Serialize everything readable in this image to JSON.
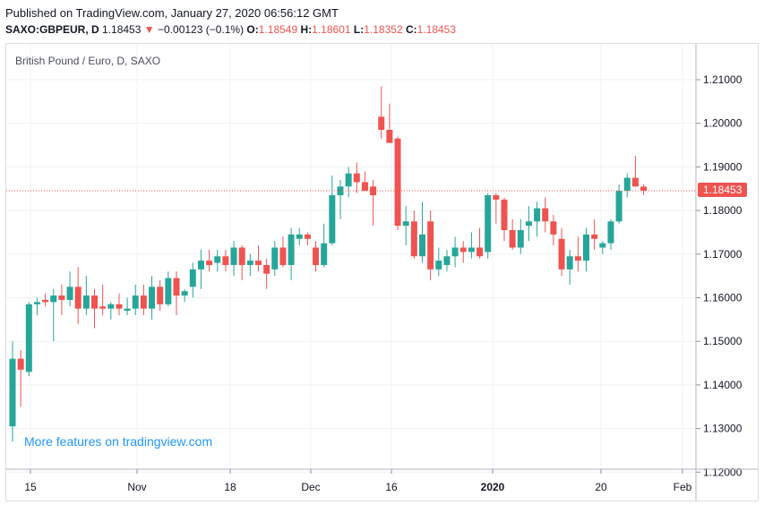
{
  "header": {
    "published": "Published on TradingView.com, January 27, 2020 06:56:12 GMT",
    "symbol": "SAXO:GBPEUR, D",
    "last": "1.18453",
    "change_arrow": "▼",
    "change": "−0.00123 (−0.1%)",
    "o_label": "O:",
    "o_value": "1.18549",
    "h_label": "H:",
    "h_value": "1.18601",
    "l_label": "L:",
    "l_value": "1.18352",
    "c_label": "C:",
    "c_value": "1.18453"
  },
  "legend": "British Pound / Euro, D, SAXO",
  "watermark": "More features on tradingview.com",
  "colors": {
    "up": "#26a69a",
    "down": "#ef5350",
    "grid": "#eef0f3",
    "axis_text": "#131722"
  },
  "chart_data": {
    "type": "candlestick",
    "title": "British Pound / Euro, D, SAXO",
    "ylim": [
      1.12,
      1.21
    ],
    "y_ticks": [
      "1.21000",
      "1.20000",
      "1.19000",
      "1.18000",
      "1.17000",
      "1.16000",
      "1.15000",
      "1.14000",
      "1.13000",
      "1.12000"
    ],
    "x_ticks": [
      "15",
      "Nov",
      "18",
      "Dec",
      "16",
      "2020",
      "20",
      "Feb"
    ],
    "last_price": "1.18453",
    "candles": [
      {
        "o": 1.1305,
        "h": 1.15,
        "l": 1.127,
        "c": 1.146
      },
      {
        "o": 1.146,
        "h": 1.148,
        "l": 1.135,
        "c": 1.1435
      },
      {
        "o": 1.143,
        "h": 1.159,
        "l": 1.142,
        "c": 1.1585
      },
      {
        "o": 1.1585,
        "h": 1.16,
        "l": 1.156,
        "c": 1.159
      },
      {
        "o": 1.1595,
        "h": 1.161,
        "l": 1.158,
        "c": 1.159
      },
      {
        "o": 1.159,
        "h": 1.162,
        "l": 1.15,
        "c": 1.1605
      },
      {
        "o": 1.1605,
        "h": 1.163,
        "l": 1.156,
        "c": 1.1595
      },
      {
        "o": 1.1595,
        "h": 1.166,
        "l": 1.158,
        "c": 1.1625
      },
      {
        "o": 1.1625,
        "h": 1.167,
        "l": 1.154,
        "c": 1.1575
      },
      {
        "o": 1.1575,
        "h": 1.165,
        "l": 1.156,
        "c": 1.1605
      },
      {
        "o": 1.1605,
        "h": 1.162,
        "l": 1.153,
        "c": 1.1575
      },
      {
        "o": 1.158,
        "h": 1.163,
        "l": 1.156,
        "c": 1.1575
      },
      {
        "o": 1.1575,
        "h": 1.159,
        "l": 1.155,
        "c": 1.1585
      },
      {
        "o": 1.1585,
        "h": 1.161,
        "l": 1.156,
        "c": 1.1575
      },
      {
        "o": 1.157,
        "h": 1.16,
        "l": 1.156,
        "c": 1.1575
      },
      {
        "o": 1.1575,
        "h": 1.163,
        "l": 1.156,
        "c": 1.1605
      },
      {
        "o": 1.1605,
        "h": 1.163,
        "l": 1.156,
        "c": 1.1575
      },
      {
        "o": 1.1575,
        "h": 1.165,
        "l": 1.155,
        "c": 1.1625
      },
      {
        "o": 1.1625,
        "h": 1.164,
        "l": 1.157,
        "c": 1.1585
      },
      {
        "o": 1.1585,
        "h": 1.166,
        "l": 1.158,
        "c": 1.1645
      },
      {
        "o": 1.1645,
        "h": 1.166,
        "l": 1.156,
        "c": 1.1605
      },
      {
        "o": 1.1605,
        "h": 1.162,
        "l": 1.159,
        "c": 1.1615
      },
      {
        "o": 1.1625,
        "h": 1.168,
        "l": 1.16,
        "c": 1.1665
      },
      {
        "o": 1.1665,
        "h": 1.171,
        "l": 1.162,
        "c": 1.1685
      },
      {
        "o": 1.1685,
        "h": 1.171,
        "l": 1.166,
        "c": 1.1675
      },
      {
        "o": 1.168,
        "h": 1.171,
        "l": 1.166,
        "c": 1.1695
      },
      {
        "o": 1.1695,
        "h": 1.171,
        "l": 1.166,
        "c": 1.1675
      },
      {
        "o": 1.1675,
        "h": 1.173,
        "l": 1.165,
        "c": 1.1715
      },
      {
        "o": 1.1715,
        "h": 1.172,
        "l": 1.164,
        "c": 1.1675
      },
      {
        "o": 1.1675,
        "h": 1.17,
        "l": 1.165,
        "c": 1.1685
      },
      {
        "o": 1.1685,
        "h": 1.172,
        "l": 1.166,
        "c": 1.1675
      },
      {
        "o": 1.1675,
        "h": 1.169,
        "l": 1.162,
        "c": 1.1655
      },
      {
        "o": 1.1665,
        "h": 1.173,
        "l": 1.165,
        "c": 1.1715
      },
      {
        "o": 1.1715,
        "h": 1.174,
        "l": 1.167,
        "c": 1.1675
      },
      {
        "o": 1.1675,
        "h": 1.176,
        "l": 1.164,
        "c": 1.1745
      },
      {
        "o": 1.1735,
        "h": 1.176,
        "l": 1.172,
        "c": 1.1745
      },
      {
        "o": 1.1745,
        "h": 1.175,
        "l": 1.172,
        "c": 1.1735
      },
      {
        "o": 1.1715,
        "h": 1.173,
        "l": 1.166,
        "c": 1.1675
      },
      {
        "o": 1.1675,
        "h": 1.177,
        "l": 1.167,
        "c": 1.1725
      },
      {
        "o": 1.1725,
        "h": 1.188,
        "l": 1.172,
        "c": 1.1835
      },
      {
        "o": 1.1835,
        "h": 1.187,
        "l": 1.178,
        "c": 1.1855
      },
      {
        "o": 1.1855,
        "h": 1.19,
        "l": 1.183,
        "c": 1.1885
      },
      {
        "o": 1.1885,
        "h": 1.191,
        "l": 1.184,
        "c": 1.1865
      },
      {
        "o": 1.1865,
        "h": 1.189,
        "l": 1.1845,
        "c": 1.1845
      },
      {
        "o": 1.1855,
        "h": 1.187,
        "l": 1.1765,
        "c": 1.1835
      },
      {
        "o": 1.2015,
        "h": 1.2085,
        "l": 1.1965,
        "c": 1.1985
      },
      {
        "o": 1.1985,
        "h": 1.2045,
        "l": 1.1955,
        "c": 1.1955
      },
      {
        "o": 1.1965,
        "h": 1.197,
        "l": 1.1755,
        "c": 1.1765
      },
      {
        "o": 1.1765,
        "h": 1.181,
        "l": 1.172,
        "c": 1.1775
      },
      {
        "o": 1.1775,
        "h": 1.18,
        "l": 1.169,
        "c": 1.1695
      },
      {
        "o": 1.1695,
        "h": 1.182,
        "l": 1.168,
        "c": 1.1745
      },
      {
        "o": 1.1775,
        "h": 1.18,
        "l": 1.164,
        "c": 1.1665
      },
      {
        "o": 1.1665,
        "h": 1.1715,
        "l": 1.165,
        "c": 1.1685
      },
      {
        "o": 1.1675,
        "h": 1.171,
        "l": 1.166,
        "c": 1.1695
      },
      {
        "o": 1.1695,
        "h": 1.174,
        "l": 1.167,
        "c": 1.1715
      },
      {
        "o": 1.1715,
        "h": 1.173,
        "l": 1.168,
        "c": 1.1705
      },
      {
        "o": 1.1705,
        "h": 1.175,
        "l": 1.169,
        "c": 1.1715
      },
      {
        "o": 1.1715,
        "h": 1.176,
        "l": 1.169,
        "c": 1.1695
      },
      {
        "o": 1.1705,
        "h": 1.184,
        "l": 1.169,
        "c": 1.1835
      },
      {
        "o": 1.1835,
        "h": 1.184,
        "l": 1.177,
        "c": 1.1825
      },
      {
        "o": 1.1825,
        "h": 1.183,
        "l": 1.173,
        "c": 1.1755
      },
      {
        "o": 1.1755,
        "h": 1.178,
        "l": 1.171,
        "c": 1.1715
      },
      {
        "o": 1.1715,
        "h": 1.178,
        "l": 1.17,
        "c": 1.1755
      },
      {
        "o": 1.1765,
        "h": 1.181,
        "l": 1.173,
        "c": 1.1775
      },
      {
        "o": 1.1775,
        "h": 1.182,
        "l": 1.174,
        "c": 1.1805
      },
      {
        "o": 1.1805,
        "h": 1.183,
        "l": 1.175,
        "c": 1.1775
      },
      {
        "o": 1.1775,
        "h": 1.179,
        "l": 1.172,
        "c": 1.1745
      },
      {
        "o": 1.1735,
        "h": 1.176,
        "l": 1.165,
        "c": 1.1665
      },
      {
        "o": 1.1665,
        "h": 1.171,
        "l": 1.163,
        "c": 1.1695
      },
      {
        "o": 1.1695,
        "h": 1.174,
        "l": 1.166,
        "c": 1.1685
      },
      {
        "o": 1.1685,
        "h": 1.176,
        "l": 1.166,
        "c": 1.1745
      },
      {
        "o": 1.1745,
        "h": 1.178,
        "l": 1.171,
        "c": 1.1735
      },
      {
        "o": 1.1715,
        "h": 1.173,
        "l": 1.17,
        "c": 1.1725
      },
      {
        "o": 1.1725,
        "h": 1.178,
        "l": 1.171,
        "c": 1.1775
      },
      {
        "o": 1.1775,
        "h": 1.186,
        "l": 1.177,
        "c": 1.1845
      },
      {
        "o": 1.1845,
        "h": 1.1885,
        "l": 1.183,
        "c": 1.1875
      },
      {
        "o": 1.1875,
        "h": 1.1925,
        "l": 1.1855,
        "c": 1.1855
      },
      {
        "o": 1.18549,
        "h": 1.18601,
        "l": 1.18352,
        "c": 1.18453
      }
    ]
  }
}
